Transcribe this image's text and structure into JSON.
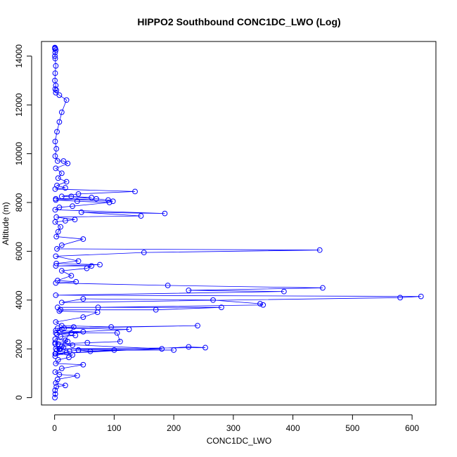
{
  "chart_data": {
    "type": "scatter",
    "title": "HIPPO2 Southbound CONC1DC_LWO (Log)",
    "xlabel": "CONC1DC_LWO",
    "ylabel": "Altitude (m)",
    "xlim": [
      -22,
      640
    ],
    "ylim": [
      -300,
      14600
    ],
    "x_ticks": [
      0,
      100,
      200,
      300,
      400,
      500,
      600
    ],
    "y_ticks": [
      0,
      2000,
      4000,
      6000,
      8000,
      10000,
      12000,
      14000
    ],
    "grid": false,
    "legend": "none",
    "marker": "open-circle",
    "connected": true,
    "color": "#0000ff",
    "line_color": "#0000ff",
    "series": [
      {
        "x": [
          0.5,
          1.2,
          0.8,
          3,
          18,
          2,
          5,
          38,
          8,
          1,
          12,
          48,
          2,
          6,
          24,
          30,
          1,
          20,
          4,
          9,
          2,
          15,
          12,
          30,
          6,
          1,
          22,
          18,
          1,
          10,
          35,
          4,
          28,
          48,
          2,
          12,
          5,
          32,
          1,
          25,
          40,
          200,
          8,
          253,
          225,
          2,
          100,
          40,
          60,
          180,
          1,
          55,
          110,
          105,
          2,
          125,
          16,
          240,
          95,
          12,
          2,
          48,
          72,
          8,
          10,
          170,
          280,
          5,
          73,
          350,
          345,
          266,
          48,
          12,
          580,
          615,
          2,
          385,
          225,
          450,
          190,
          2,
          36,
          5,
          28,
          12,
          54,
          62,
          2,
          76,
          3,
          40,
          2,
          150,
          445,
          4,
          12,
          48,
          3,
          6,
          10,
          1,
          18,
          34,
          3,
          145,
          45,
          185,
          1,
          8,
          30,
          92,
          38,
          2,
          70,
          90,
          98,
          2,
          62,
          28,
          12,
          40,
          135,
          1,
          18,
          4,
          20,
          6,
          12,
          2,
          22,
          15,
          5,
          1,
          3,
          1,
          4,
          8,
          12,
          20,
          8,
          2,
          3,
          1,
          2,
          0.5,
          1,
          2,
          1,
          0.5,
          1,
          2,
          0.5,
          1,
          0.5
        ],
        "y": [
          0,
          150,
          300,
          450,
          500,
          600,
          750,
          900,
          950,
          1050,
          1200,
          1350,
          1400,
          1550,
          1650,
          1750,
          1800,
          1850,
          1950,
          1980,
          2000,
          2050,
          2100,
          2150,
          2200,
          2250,
          2300,
          2350,
          2400,
          2500,
          2550,
          2600,
          2650,
          2700,
          2750,
          2800,
          2850,
          2900,
          1700,
          1900,
          1950,
          1950,
          2000,
          2050,
          2080,
          1800,
          1950,
          1950,
          1900,
          2000,
          2200,
          2250,
          2300,
          2650,
          2650,
          2800,
          2850,
          2950,
          2900,
          2950,
          3100,
          3300,
          3500,
          3550,
          3600,
          3600,
          3700,
          3700,
          3700,
          3800,
          3850,
          4000,
          4050,
          3900,
          4100,
          4150,
          4200,
          4350,
          4400,
          4500,
          4600,
          4700,
          4750,
          4800,
          5000,
          5200,
          5300,
          5400,
          5400,
          5450,
          5500,
          5600,
          5800,
          5950,
          6050,
          6100,
          6250,
          6500,
          6600,
          6800,
          7000,
          7200,
          7250,
          7300,
          7400,
          7450,
          7600,
          7550,
          7700,
          7800,
          7850,
          8000,
          8050,
          8100,
          8150,
          8100,
          8050,
          8150,
          8200,
          8250,
          8250,
          8350,
          8450,
          8550,
          8600,
          8700,
          8850,
          9000,
          9200,
          9400,
          9600,
          9700,
          9700,
          9900,
          10200,
          10500,
          10900,
          11300,
          11700,
          12200,
          12400,
          12500,
          12600,
          12650,
          12800,
          13000,
          13300,
          13600,
          13900,
          14000,
          14150,
          14250,
          14300,
          14330,
          14350
        ]
      }
    ]
  }
}
